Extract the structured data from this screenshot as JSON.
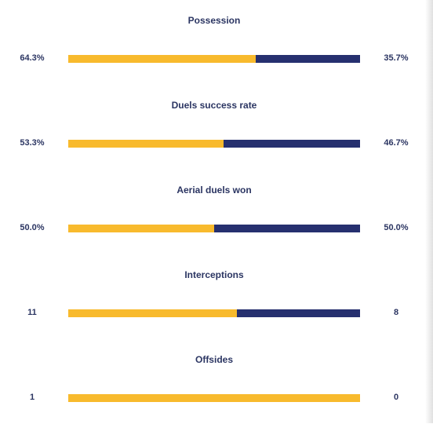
{
  "colors": {
    "home": "#f8ba2d",
    "away": "#26306f",
    "text": "#2b3562"
  },
  "stats": [
    {
      "label": "Possession",
      "home": "64.3%",
      "away": "35.7%",
      "home_share": 0.643
    },
    {
      "label": "Duels success rate",
      "home": "53.3%",
      "away": "46.7%",
      "home_share": 0.533
    },
    {
      "label": "Aerial duels won",
      "home": "50.0%",
      "away": "50.0%",
      "home_share": 0.5
    },
    {
      "label": "Interceptions",
      "home": "11",
      "away": "8",
      "home_share": 0.579
    },
    {
      "label": "Offsides",
      "home": "1",
      "away": "0",
      "home_share": 1.0
    }
  ]
}
